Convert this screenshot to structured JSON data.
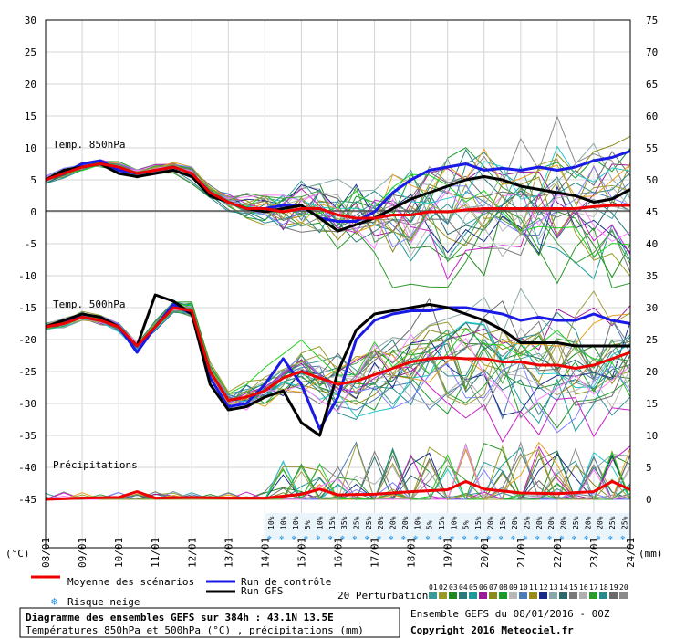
{
  "chart_data": {
    "type": "line",
    "title": "Diagramme des ensembles GEFS sur 384h : 43.1N 13.5E",
    "subtitle": "Températures 850hPa et 500hPa (°C) , précipitations (mm)",
    "run_info": "Ensemble GEFS du 08/01/2016 - 00Z",
    "copyright": "Copyright 2016 Meteociel.fr",
    "ylabel_left": "(°C)",
    "ylabel_right": "(mm)",
    "ylim_left": [
      -45,
      30
    ],
    "yticks_left": [
      30,
      25,
      20,
      15,
      10,
      5,
      0,
      -5,
      -10,
      -15,
      -20,
      -25,
      -30,
      -35,
      -40,
      -45
    ],
    "ylim_right": [
      0,
      75
    ],
    "yticks_right": [
      75,
      70,
      65,
      60,
      55,
      50,
      45,
      40,
      35,
      30,
      25,
      20,
      15,
      10,
      5,
      0
    ],
    "xlim_hours": [
      0,
      384
    ],
    "x_dates": [
      "08/01",
      "09/01",
      "10/01",
      "11/01",
      "12/01",
      "13/01",
      "14/01",
      "15/01",
      "16/01",
      "17/01",
      "18/01",
      "19/01",
      "20/01",
      "21/01",
      "22/01",
      "23/01",
      "24/01"
    ],
    "panel_labels": [
      "Temp. 850hPa",
      "Temp. 500hPa",
      "Précipitations"
    ],
    "legend": {
      "mean": "Moyenne des scénarios",
      "control": "Run de contrôle",
      "gfs": "Run GFS",
      "snow": "Risque neige",
      "perturbations": "20 Perturbations",
      "pert_labels": [
        "01",
        "02",
        "03",
        "04",
        "05",
        "06",
        "07",
        "08",
        "09",
        "10",
        "11",
        "12",
        "13",
        "14",
        "15",
        "16",
        "17",
        "18",
        "19",
        "20"
      ],
      "pert_colors": [
        "#3a9a9a",
        "#9a9a28",
        "#1e8a1e",
        "#2a7a7a",
        "#1e9a9a",
        "#9a1a9a",
        "#8a8a1e",
        "#1a9a2a",
        "#b8b8b8",
        "#4a7ab8",
        "#9a8a1a",
        "#1a2a8a",
        "#8aa8a8",
        "#2a6a6a",
        "#7a7a7a",
        "#b0b0b0",
        "#2a9a2a",
        "#2a8a8a",
        "#6a6a6a",
        "#8a8a8a"
      ]
    },
    "snow_risk_pct": [
      "10%",
      "10%",
      "10%",
      "5%",
      "10%",
      "15%",
      "35%",
      "25%",
      "25%",
      "20%",
      "20%",
      "20%",
      "10%",
      "5%",
      "15%",
      "10%",
      "5%",
      "15%",
      "20%",
      "15%",
      "20%",
      "25%",
      "20%",
      "20%",
      "20%",
      "25%",
      "20%",
      "20%",
      "25%",
      "25%"
    ],
    "series": [
      {
        "name": "Moyenne des scénarios",
        "panel": "850hPa",
        "color": "#ee0000",
        "x": [
          0,
          12,
          24,
          36,
          48,
          60,
          72,
          84,
          96,
          108,
          120,
          132,
          144,
          156,
          168,
          180,
          192,
          204,
          216,
          228,
          240,
          252,
          264,
          276,
          288,
          300,
          312,
          324,
          336,
          348,
          360,
          372,
          384
        ],
        "y": [
          5,
          6,
          7,
          7.5,
          7,
          6,
          6.5,
          7,
          6,
          3,
          1.5,
          0.5,
          0.5,
          0,
          0.5,
          0.5,
          -0.5,
          -1,
          -1,
          -0.5,
          -0.5,
          0,
          0,
          0.3,
          0.5,
          0.5,
          0.5,
          0.5,
          0.5,
          0.5,
          0.8,
          1,
          1
        ]
      },
      {
        "name": "Run de contrôle",
        "panel": "850hPa",
        "color": "#1a1ae6",
        "x": [
          0,
          12,
          24,
          36,
          48,
          60,
          72,
          84,
          96,
          108,
          120,
          132,
          144,
          156,
          168,
          180,
          192,
          204,
          216,
          228,
          240,
          252,
          264,
          276,
          288,
          300,
          312,
          324,
          336,
          348,
          360,
          372,
          384
        ],
        "y": [
          5,
          6,
          7.5,
          8,
          6.5,
          6,
          6.5,
          7,
          6,
          3,
          1.5,
          0.5,
          0.5,
          1,
          1,
          -1,
          -1.5,
          -1.5,
          0,
          3,
          5,
          6.5,
          7,
          7.5,
          6.5,
          6.8,
          6.5,
          7,
          6.5,
          7,
          8,
          8.5,
          9.5
        ]
      },
      {
        "name": "Run GFS",
        "panel": "850hPa",
        "color": "#000000",
        "x": [
          0,
          12,
          24,
          36,
          48,
          60,
          72,
          84,
          96,
          108,
          120,
          132,
          144,
          156,
          168,
          180,
          192,
          204,
          216,
          228,
          240,
          252,
          264,
          276,
          288,
          300,
          312,
          324,
          336,
          348,
          360,
          372,
          384
        ],
        "y": [
          5,
          6.5,
          7,
          7.5,
          6,
          5.5,
          6,
          6.5,
          5.5,
          2.5,
          1.5,
          0.5,
          0,
          0.5,
          1,
          -1,
          -3,
          -2,
          -1,
          0.5,
          2,
          3,
          4,
          5,
          5.5,
          5,
          4,
          3.5,
          3,
          2.5,
          1.5,
          2,
          3.5
        ]
      },
      {
        "name": "Moyenne des scénarios",
        "panel": "500hPa",
        "color": "#ee0000",
        "x": [
          0,
          12,
          24,
          36,
          48,
          60,
          72,
          84,
          96,
          108,
          120,
          132,
          144,
          156,
          168,
          180,
          192,
          204,
          216,
          228,
          240,
          252,
          264,
          276,
          288,
          300,
          312,
          324,
          336,
          348,
          360,
          372,
          384
        ],
        "y": [
          -18,
          -17.5,
          -16.5,
          -17,
          -18,
          -21,
          -18,
          -15,
          -15.5,
          -25,
          -29.5,
          -29,
          -28,
          -26,
          -25,
          -26,
          -27,
          -26.5,
          -25.5,
          -24.5,
          -23.5,
          -23,
          -22.8,
          -23,
          -23,
          -23.5,
          -23.5,
          -24,
          -24,
          -24.5,
          -24,
          -23,
          -22
        ]
      },
      {
        "name": "Run de contrôle",
        "panel": "500hPa",
        "color": "#1a1ae6",
        "x": [
          0,
          12,
          24,
          36,
          48,
          60,
          72,
          84,
          96,
          108,
          120,
          132,
          144,
          156,
          168,
          180,
          192,
          204,
          216,
          228,
          240,
          252,
          264,
          276,
          288,
          300,
          312,
          324,
          336,
          348,
          360,
          372,
          384
        ],
        "y": [
          -18,
          -17,
          -16.5,
          -17,
          -18,
          -22,
          -18,
          -14.5,
          -16,
          -26,
          -30.5,
          -30,
          -27,
          -23,
          -27,
          -34,
          -29,
          -20,
          -17,
          -16,
          -15.5,
          -15.5,
          -15,
          -15,
          -15.5,
          -16,
          -17,
          -16.5,
          -17,
          -17,
          -16,
          -17,
          -17.5
        ]
      },
      {
        "name": "Run GFS",
        "panel": "500hPa",
        "color": "#000000",
        "x": [
          0,
          12,
          24,
          36,
          48,
          60,
          72,
          84,
          96,
          108,
          120,
          132,
          144,
          156,
          168,
          180,
          192,
          204,
          216,
          228,
          240,
          252,
          264,
          276,
          288,
          300,
          312,
          324,
          336,
          348,
          360,
          372,
          384
        ],
        "y": [
          -18,
          -17,
          -16,
          -16.5,
          -18,
          -21,
          -13,
          -14,
          -16,
          -27,
          -31,
          -30.5,
          -29,
          -28,
          -33,
          -35,
          -25,
          -18.5,
          -16,
          -15.5,
          -15,
          -14.5,
          -15,
          -16,
          -17,
          -18.5,
          -20.5,
          -20.5,
          -20.5,
          -21,
          -21,
          -21,
          -21
        ]
      },
      {
        "name": "Moyenne des scénarios",
        "panel": "precip",
        "color": "#ee0000",
        "x": [
          0,
          24,
          48,
          60,
          72,
          96,
          120,
          144,
          168,
          180,
          192,
          216,
          240,
          264,
          276,
          288,
          312,
          336,
          360,
          372,
          384
        ],
        "y": [
          0,
          0.2,
          0.3,
          1.2,
          0.2,
          0.3,
          0.2,
          0.2,
          0.8,
          1.6,
          0.7,
          0.8,
          1.2,
          1.5,
          2.8,
          1.6,
          1,
          0.9,
          1.2,
          2.8,
          1.5
        ]
      }
    ]
  }
}
